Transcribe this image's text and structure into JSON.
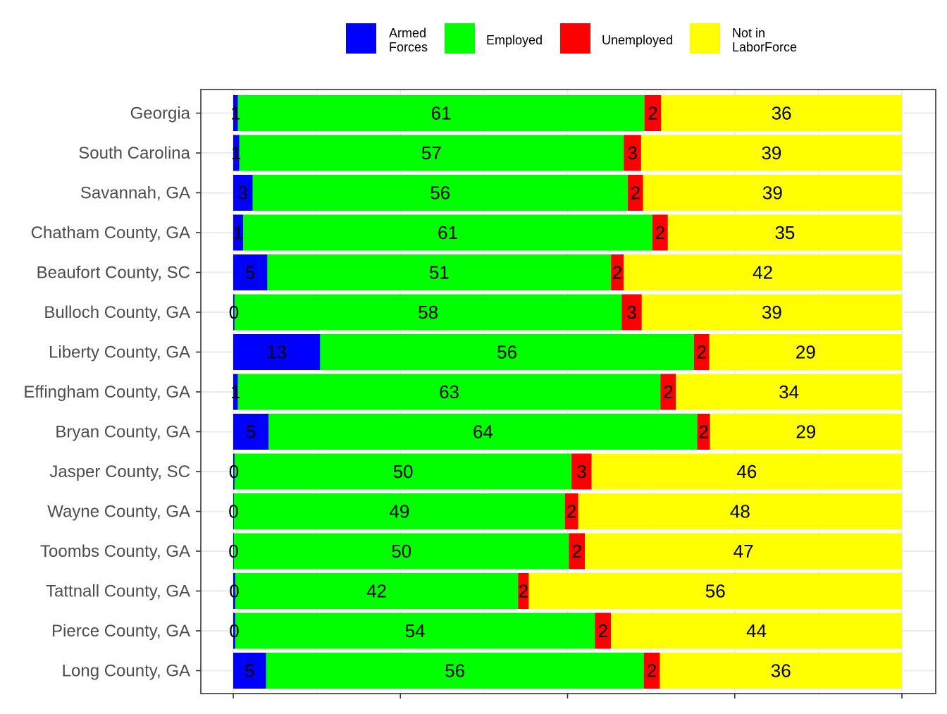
{
  "chart_data": {
    "type": "bar",
    "orientation": "horizontal",
    "stacked": true,
    "normalized": true,
    "title": "",
    "xlabel": "",
    "ylabel": "",
    "xlim": [
      0,
      100
    ],
    "grid": true,
    "legend_position": "top",
    "categories": [
      "Georgia",
      "South Carolina",
      "Savannah, GA",
      "Chatham County, GA",
      "Beaufort County, SC",
      "Bulloch County, GA",
      "Liberty County, GA",
      "Effingham County, GA",
      "Bryan County, GA",
      "Jasper County, SC",
      "Wayne County, GA",
      "Toombs County, GA",
      "Tattnall County, GA",
      "Pierce County, GA",
      "Long County, GA"
    ],
    "series": [
      {
        "name": "Armed Forces",
        "legend_lines": [
          "Armed",
          "Forces"
        ],
        "color": "#0000FF",
        "values": [
          0.7,
          0.9,
          2.9,
          1.5,
          5.1,
          0.2,
          13.0,
          0.7,
          5.3,
          0.2,
          0.1,
          0.1,
          0.3,
          0.3,
          4.9
        ],
        "labels": [
          "1",
          "1",
          "3",
          "1",
          "5",
          "0",
          "13",
          "1",
          "5",
          "0",
          "0",
          "0",
          "0",
          "0",
          "5"
        ]
      },
      {
        "name": "Employed",
        "legend_lines": [
          "Employed"
        ],
        "color": "#00FF00",
        "values": [
          60.8,
          57.5,
          56.1,
          61.2,
          51.4,
          57.9,
          55.9,
          63.2,
          64.1,
          50.4,
          49.5,
          50.1,
          42.3,
          53.8,
          56.5
        ],
        "labels": [
          "61",
          "57",
          "56",
          "61",
          "51",
          "58",
          "56",
          "63",
          "64",
          "50",
          "49",
          "50",
          "42",
          "54",
          "56"
        ]
      },
      {
        "name": "Unemployed",
        "legend_lines": [
          "Unemployed"
        ],
        "color": "#FF0000",
        "values": [
          2.5,
          2.6,
          2.3,
          2.3,
          1.9,
          3.0,
          2.3,
          2.3,
          1.9,
          3.0,
          2.0,
          2.4,
          1.6,
          2.4,
          2.4
        ],
        "labels": [
          "2",
          "3",
          "2",
          "2",
          "2",
          "3",
          "2",
          "2",
          "2",
          "3",
          "2",
          "2",
          "2",
          "2",
          "2"
        ]
      },
      {
        "name": "Not in LaborForce",
        "legend_lines": [
          "Not in",
          "LaborForce"
        ],
        "color": "#FFFF00",
        "values": [
          36.0,
          39.0,
          38.7,
          35.0,
          41.6,
          38.9,
          28.8,
          33.8,
          28.7,
          46.4,
          48.4,
          47.4,
          55.8,
          43.5,
          36.2
        ],
        "labels": [
          "36",
          "39",
          "39",
          "35",
          "42",
          "39",
          "29",
          "34",
          "29",
          "46",
          "48",
          "47",
          "56",
          "44",
          "36"
        ]
      }
    ]
  }
}
